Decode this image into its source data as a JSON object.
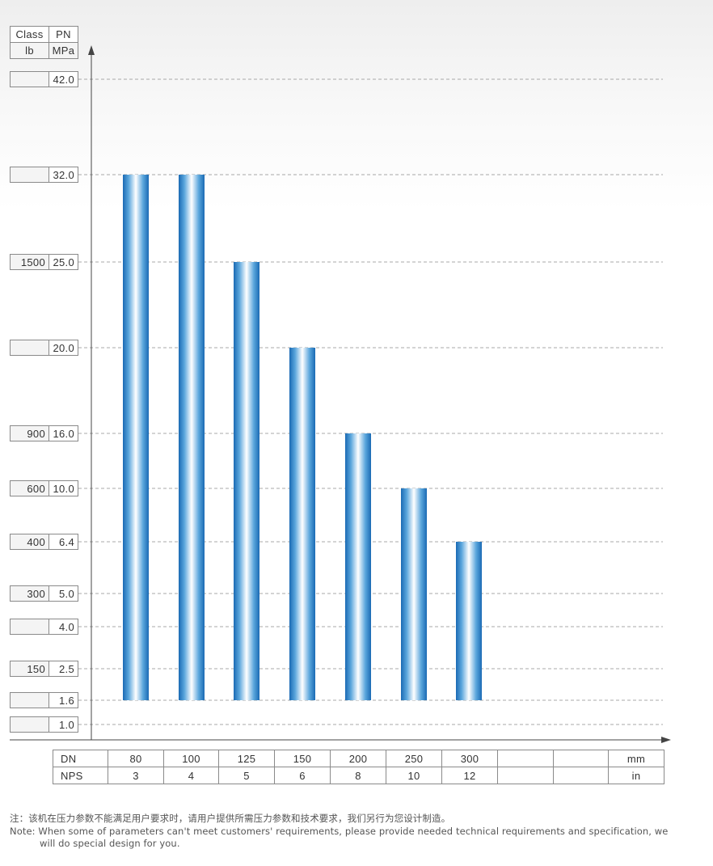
{
  "chart_data": {
    "type": "bar",
    "title": "",
    "header": {
      "class_label": "Class",
      "pn_label": "PN",
      "lb_label": "lb",
      "mpa_label": "MPa"
    },
    "y_axis": {
      "ticks": [
        {
          "pn": "42.0",
          "class": "",
          "value": 42.0
        },
        {
          "pn": "32.0",
          "class": "",
          "value": 32.0
        },
        {
          "pn": "25.0",
          "class": "1500",
          "value": 25.0
        },
        {
          "pn": "20.0",
          "class": "",
          "value": 20.0
        },
        {
          "pn": "16.0",
          "class": "900",
          "value": 16.0
        },
        {
          "pn": "10.0",
          "class": "600",
          "value": 10.0
        },
        {
          "pn": "6.4",
          "class": "400",
          "value": 6.4
        },
        {
          "pn": "5.0",
          "class": "300",
          "value": 5.0
        },
        {
          "pn": "4.0",
          "class": "",
          "value": 4.0
        },
        {
          "pn": "2.5",
          "class": "150",
          "value": 2.5
        },
        {
          "pn": "1.6",
          "class": "",
          "value": 1.6
        },
        {
          "pn": "1.0",
          "class": "",
          "value": 1.0
        }
      ]
    },
    "x_axis": {
      "dn_label": "DN",
      "nps_label": "NPS",
      "dn_unit": "mm",
      "nps_unit": "in",
      "dn": [
        "80",
        "100",
        "125",
        "150",
        "200",
        "250",
        "300",
        "",
        ""
      ],
      "nps": [
        "3",
        "4",
        "5",
        "6",
        "8",
        "10",
        "12",
        "",
        ""
      ]
    },
    "categories": [
      "80",
      "100",
      "125",
      "150",
      "200",
      "250",
      "300"
    ],
    "bar_base": 1.6,
    "values": [
      32.0,
      32.0,
      25.0,
      20.0,
      16.0,
      10.0,
      6.4
    ],
    "grid": true,
    "colors": {
      "bar_dark": "#1a6ab4",
      "bar_mid": "#5aa6dc",
      "bar_light": "#ffffff",
      "grid": "#a8a8a8",
      "axis": "#444444"
    }
  },
  "note": {
    "zh": "注：该机在压力参数不能满足用户要求时，请用户提供所需压力参数和技术要求，我们另行为您设计制造。",
    "en_line1": "Note: When some of parameters can't meet customers' requirements, please provide needed technical requirements and specification, we",
    "en_line2": "will do special design for you."
  }
}
